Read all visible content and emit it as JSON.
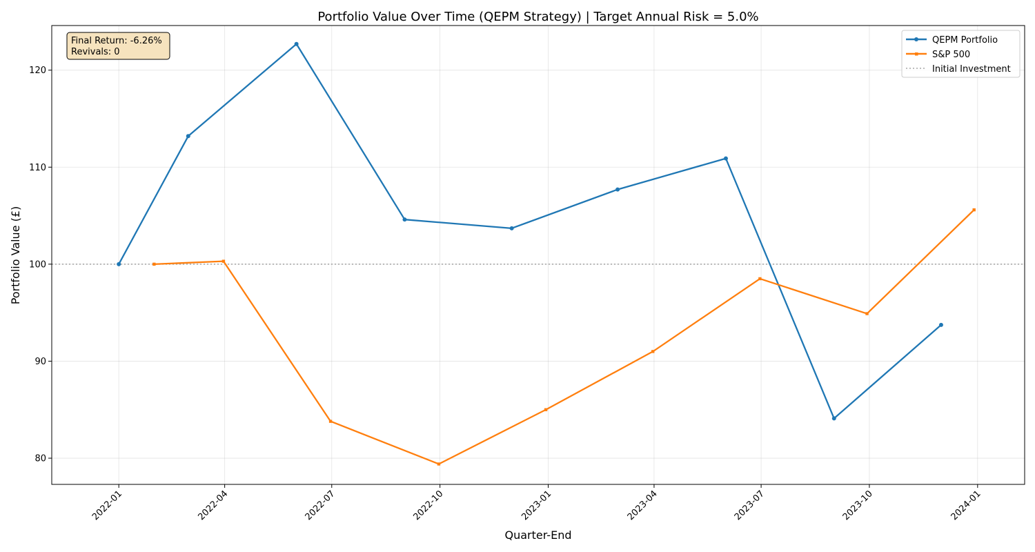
{
  "chart_data": {
    "type": "line",
    "title": "Portfolio Value Over Time (QEPM Strategy) | Target Annual Risk = 5.0%",
    "xlabel": "Quarter-End",
    "ylabel": "Portfolio Value (£)",
    "xlim": [
      "2021-11-05",
      "2024-02-10"
    ],
    "ylim": [
      77.3,
      124.6
    ],
    "x_ticks": [
      "2022-01",
      "2022-04",
      "2022-07",
      "2022-10",
      "2023-01",
      "2023-04",
      "2023-07",
      "2023-10",
      "2024-01"
    ],
    "y_ticks": [
      80,
      90,
      100,
      110,
      120
    ],
    "grid": true,
    "legend_position": "top-right",
    "series": [
      {
        "name": "QEPM Portfolio",
        "color": "#1f77b4",
        "marker": "circle",
        "x": [
          "2022-01-01",
          "2022-03-01",
          "2022-06-01",
          "2022-09-01",
          "2022-12-01",
          "2023-03-01",
          "2023-06-01",
          "2023-09-01",
          "2023-12-01"
        ],
        "y": [
          100.0,
          113.2,
          122.7,
          104.6,
          103.7,
          107.7,
          110.9,
          84.1,
          93.74
        ]
      },
      {
        "name": "S&P 500",
        "color": "#ff7f0e",
        "marker": "square",
        "x": [
          "2022-01-31",
          "2022-03-31",
          "2022-06-30",
          "2022-09-30",
          "2022-12-30",
          "2023-03-31",
          "2023-06-30",
          "2023-09-29",
          "2023-12-29"
        ],
        "y": [
          100.0,
          100.3,
          83.8,
          79.4,
          85.0,
          91.0,
          98.5,
          94.9,
          105.6
        ]
      }
    ],
    "reference_line": {
      "name": "Initial Investment",
      "y": 100,
      "color": "#808080",
      "style": "dotted"
    },
    "annotation": {
      "lines": [
        "Final Return: -6.26%",
        "Revivals: 0"
      ],
      "background": "#f5deb3"
    }
  }
}
